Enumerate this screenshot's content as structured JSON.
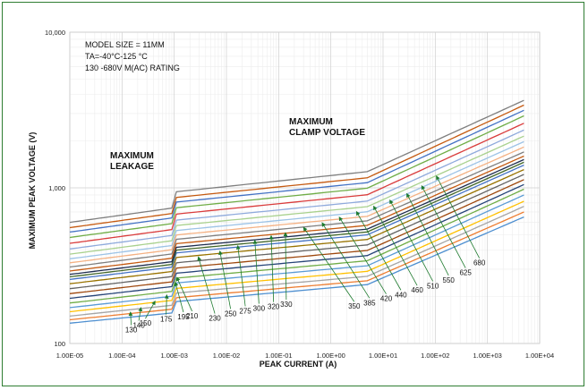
{
  "chart_data": {
    "type": "line",
    "xlabel": "PEAK CURRENT (A)",
    "ylabel": "MAXIMUM PEAK VOLTAGE (V)",
    "x_scale": "log",
    "y_scale": "log",
    "xlim": [
      1e-05,
      10000
    ],
    "ylim": [
      100,
      10000
    ],
    "x_ticks": [
      "1.00E-05",
      "1.00E-04",
      "1.00E-03",
      "1.00E-02",
      "1.00E-01",
      "1.00E+00",
      "1.00E+01",
      "1.00E+02",
      "1.00E+03",
      "1.00E+04"
    ],
    "y_ticks": [
      "10,000",
      "1,000",
      "100"
    ],
    "grid": true,
    "notes": [
      "MODEL SIZE = 11MM",
      "TA=-40°C-125 °C",
      "130 -680V M(AC) RATING"
    ],
    "region_labels": [
      {
        "lines": [
          "MAXIMUM",
          "LEAKAGE"
        ]
      },
      {
        "lines": [
          "MAXIMUM",
          "CLAMP VOLTAGE"
        ]
      }
    ],
    "series": [
      {
        "name": "130",
        "color": "#4e8fd0",
        "values": [
          [
            1e-05,
            135
          ],
          [
            0.0009,
            157
          ],
          [
            0.0011,
            186
          ],
          [
            5,
            239
          ],
          [
            5000,
            650
          ]
        ]
      },
      {
        "name": "140",
        "color": "#ed7d31",
        "values": [
          [
            1e-05,
            142
          ],
          [
            0.0009,
            166
          ],
          [
            0.0011,
            197
          ],
          [
            5,
            253
          ],
          [
            5000,
            700
          ]
        ]
      },
      {
        "name": "150",
        "color": "#a5a5a5",
        "values": [
          [
            1e-05,
            150
          ],
          [
            0.0009,
            176
          ],
          [
            0.0011,
            211
          ],
          [
            5,
            270
          ],
          [
            5000,
            760
          ]
        ]
      },
      {
        "name": "175",
        "color": "#ffc000",
        "values": [
          [
            1e-05,
            160
          ],
          [
            0.0009,
            189
          ],
          [
            0.0011,
            226
          ],
          [
            5,
            291
          ],
          [
            5000,
            820
          ]
        ]
      },
      {
        "name": "195",
        "color": "#5b9bd5",
        "values": [
          [
            1e-05,
            170
          ],
          [
            0.0009,
            201
          ],
          [
            0.0011,
            245
          ],
          [
            5,
            316
          ],
          [
            5000,
            900
          ]
        ]
      },
      {
        "name": "210",
        "color": "#70ad47",
        "values": [
          [
            1e-05,
            182
          ],
          [
            0.0009,
            216
          ],
          [
            0.0011,
            263
          ],
          [
            5,
            340
          ],
          [
            5000,
            980
          ]
        ]
      },
      {
        "name": "230",
        "color": "#264478",
        "values": [
          [
            1e-05,
            195
          ],
          [
            0.0009,
            232
          ],
          [
            0.0011,
            283
          ],
          [
            5,
            367
          ],
          [
            5000,
            1050
          ]
        ]
      },
      {
        "name": "250",
        "color": "#9e480e",
        "values": [
          [
            1e-05,
            209
          ],
          [
            0.0009,
            249
          ],
          [
            0.0011,
            305
          ],
          [
            5,
            396
          ],
          [
            5000,
            1130
          ]
        ]
      },
      {
        "name": "275",
        "color": "#636363",
        "values": [
          [
            1e-05,
            225
          ],
          [
            0.0009,
            269
          ],
          [
            0.0011,
            330
          ],
          [
            5,
            430
          ],
          [
            5000,
            1220
          ]
        ]
      },
      {
        "name": "300",
        "color": "#997300",
        "values": [
          [
            1e-05,
            242
          ],
          [
            0.0009,
            290
          ],
          [
            0.0011,
            357
          ],
          [
            5,
            466
          ],
          [
            5000,
            1310
          ]
        ]
      },
      {
        "name": "320",
        "color": "#4472c4",
        "values": [
          [
            1e-05,
            258
          ],
          [
            0.0009,
            309
          ],
          [
            0.0011,
            382
          ],
          [
            5,
            499
          ],
          [
            5000,
            1400
          ]
        ]
      },
      {
        "name": "330",
        "color": "#43682b",
        "values": [
          [
            1e-05,
            268
          ],
          [
            0.0009,
            322
          ],
          [
            0.0011,
            398
          ],
          [
            5,
            521
          ],
          [
            5000,
            1460
          ]
        ]
      },
      {
        "name": "350",
        "color": "#1f2d4f",
        "values": [
          [
            1e-05,
            278
          ],
          [
            0.0009,
            335
          ],
          [
            0.0011,
            415
          ],
          [
            5,
            543
          ],
          [
            5000,
            1520
          ]
        ]
      },
      {
        "name": "385",
        "color": "#c55a11",
        "values": [
          [
            1e-05,
            292
          ],
          [
            0.0009,
            353
          ],
          [
            0.0011,
            438
          ],
          [
            5,
            574
          ],
          [
            5000,
            1600
          ]
        ]
      },
      {
        "name": "420",
        "color": "#7f7f7f",
        "values": [
          [
            1e-05,
            310
          ],
          [
            0.0009,
            376
          ],
          [
            0.0011,
            467
          ],
          [
            5,
            614
          ],
          [
            5000,
            1700
          ]
        ]
      },
      {
        "name": "440",
        "color": "#f4b183",
        "values": [
          [
            1e-05,
            330
          ],
          [
            0.0009,
            400
          ],
          [
            0.0011,
            498
          ],
          [
            5,
            656
          ],
          [
            5000,
            1830
          ]
        ]
      },
      {
        "name": "460",
        "color": "#9dc3e6",
        "values": [
          [
            1e-05,
            350
          ],
          [
            0.0009,
            426
          ],
          [
            0.0011,
            532
          ],
          [
            5,
            702
          ],
          [
            5000,
            1980
          ]
        ]
      },
      {
        "name": "510",
        "color": "#a9d18e",
        "values": [
          [
            1e-05,
            375
          ],
          [
            0.0009,
            457
          ],
          [
            0.0011,
            573
          ],
          [
            5,
            757
          ],
          [
            5000,
            2150
          ]
        ]
      },
      {
        "name": "550",
        "color": "#8faadc",
        "values": [
          [
            1e-05,
            405
          ],
          [
            0.0009,
            494
          ],
          [
            0.0011,
            620
          ],
          [
            5,
            822
          ],
          [
            5000,
            2350
          ]
        ]
      },
      {
        "name": "625",
        "color": "#d93c3c",
        "values": [
          [
            1e-05,
            440
          ],
          [
            0.0009,
            539
          ],
          [
            0.0011,
            679
          ],
          [
            5,
            903
          ],
          [
            5000,
            2600
          ]
        ]
      },
      {
        "name": "680",
        "color": "#70ad47",
        "values": [
          [
            1e-05,
            480
          ],
          [
            0.0009,
            589
          ],
          [
            0.0011,
            745
          ],
          [
            5,
            995
          ],
          [
            5000,
            2900
          ]
        ]
      },
      {
        "name": "",
        "color": "#4472c4",
        "values": [
          [
            1e-05,
            520
          ],
          [
            0.0009,
            640
          ],
          [
            0.0011,
            810
          ],
          [
            5,
            1080
          ],
          [
            5000,
            3150
          ]
        ]
      },
      {
        "name": "",
        "color": "#c55a11",
        "values": [
          [
            1e-05,
            555
          ],
          [
            0.0009,
            684
          ],
          [
            0.0011,
            868
          ],
          [
            5,
            1160
          ],
          [
            5000,
            3400
          ]
        ]
      },
      {
        "name": "",
        "color": "#7f7f7f",
        "values": [
          [
            1e-05,
            600
          ],
          [
            0.0009,
            741
          ],
          [
            0.0011,
            944
          ],
          [
            5,
            1270
          ],
          [
            5000,
            3650
          ]
        ]
      }
    ],
    "label_arrows": [
      {
        "name": "130",
        "target": [
          0.000145,
          159
        ]
      },
      {
        "name": "140",
        "target": [
          0.00023,
          170
        ]
      },
      {
        "name": "150",
        "target": [
          0.00043,
          187
        ]
      },
      {
        "name": "175",
        "target": [
          0.00072,
          205
        ]
      },
      {
        "name": "195",
        "target": [
          0.00105,
          247
        ]
      },
      {
        "name": "210",
        "target": [
          0.00112,
          266
        ]
      },
      {
        "name": "230",
        "target": [
          0.0029,
          360
        ]
      },
      {
        "name": "250",
        "target": [
          0.0075,
          392
        ]
      },
      {
        "name": "275",
        "target": [
          0.0165,
          425
        ]
      },
      {
        "name": "300",
        "target": [
          0.035,
          460
        ]
      },
      {
        "name": "320",
        "target": [
          0.072,
          492
        ]
      },
      {
        "name": "330",
        "target": [
          0.135,
          515
        ]
      },
      {
        "name": "350",
        "target": [
          0.3,
          557
        ]
      },
      {
        "name": "385",
        "target": [
          0.68,
          596
        ]
      },
      {
        "name": "420",
        "target": [
          1.45,
          649
        ]
      },
      {
        "name": "440",
        "target": [
          3.1,
          703
        ]
      },
      {
        "name": "460",
        "target": [
          6.6,
          762
        ]
      },
      {
        "name": "510",
        "target": [
          13.5,
          834
        ]
      },
      {
        "name": "550",
        "target": [
          28.5,
          918
        ]
      },
      {
        "name": "625",
        "target": [
          55,
          1030
        ]
      },
      {
        "name": "680",
        "target": [
          105,
          1190
        ]
      }
    ],
    "label_anchor": [
      [
        "130",
        0.00015,
        118
      ],
      [
        "140",
        0.00021,
        126
      ],
      [
        "150",
        0.00028,
        130
      ],
      [
        "175",
        0.0007,
        138
      ],
      [
        "195",
        0.0015,
        143
      ],
      [
        "210",
        0.0022,
        145
      ],
      [
        "230",
        0.006,
        140
      ],
      [
        "250",
        0.012,
        150
      ],
      [
        "275",
        0.023,
        156
      ],
      [
        "300",
        0.042,
        162
      ],
      [
        "320",
        0.08,
        166
      ],
      [
        "330",
        0.14,
        172
      ],
      [
        "350",
        2.8,
        167
      ],
      [
        "385",
        5.5,
        176
      ],
      [
        "420",
        11.5,
        187
      ],
      [
        "440",
        22,
        198
      ],
      [
        "460",
        45,
        212
      ],
      [
        "510",
        90,
        226
      ],
      [
        "550",
        180,
        246
      ],
      [
        "625",
        380,
        275
      ],
      [
        "680",
        700,
        318
      ]
    ]
  }
}
